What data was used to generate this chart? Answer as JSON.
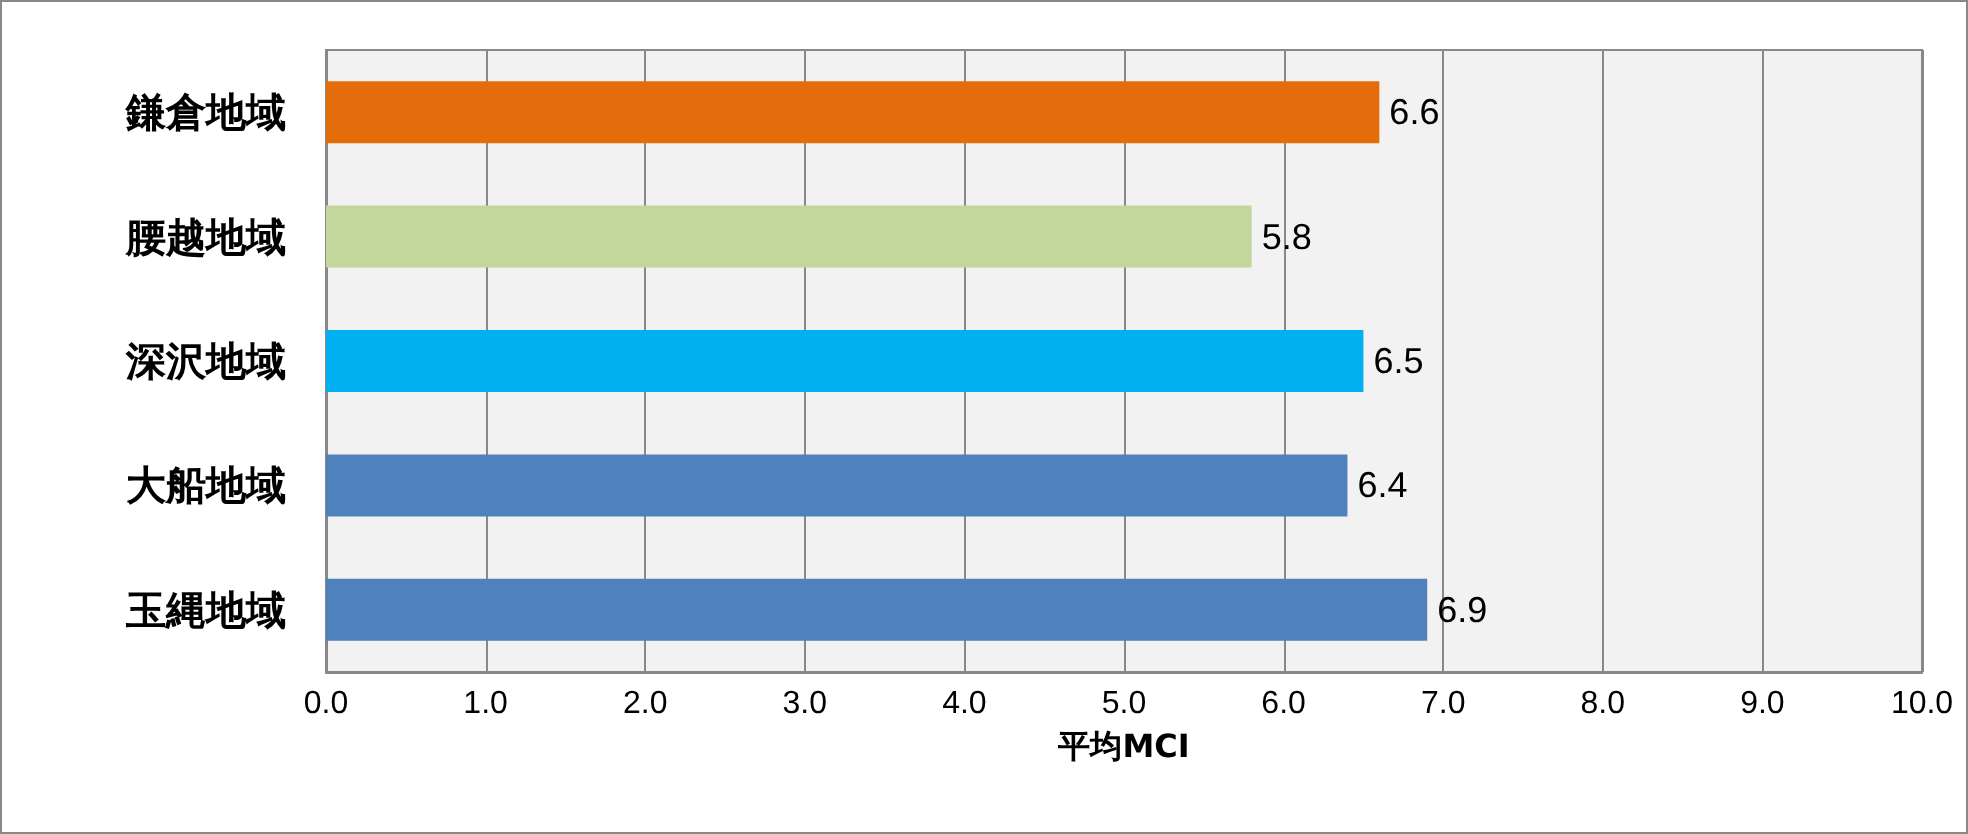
{
  "chart_data": {
    "type": "bar",
    "orientation": "horizontal",
    "xlabel": "平均MCI",
    "categories": [
      "鎌倉地域",
      "腰越地域",
      "深沢地域",
      "大船地域",
      "玉縄地域"
    ],
    "values": [
      6.6,
      5.8,
      6.5,
      6.4,
      6.9
    ],
    "colors": [
      "#e46c0a",
      "#c3d69b",
      "#00b0f0",
      "#4f81bd",
      "#4f81bd"
    ],
    "xlim": [
      0,
      10
    ],
    "xticks": [
      {
        "value": 0,
        "label": "0.0"
      },
      {
        "value": 1,
        "label": "1.0"
      },
      {
        "value": 2,
        "label": "2.0"
      },
      {
        "value": 3,
        "label": "3.0"
      },
      {
        "value": 4,
        "label": "4.0"
      },
      {
        "value": 5,
        "label": "5.0"
      },
      {
        "value": 6,
        "label": "6.0"
      },
      {
        "value": 7,
        "label": "7.0"
      },
      {
        "value": 8,
        "label": "8.0"
      },
      {
        "value": 9,
        "label": "9.0"
      },
      {
        "value": 10,
        "label": "10.0"
      }
    ],
    "grid": "x",
    "data_labels": true
  }
}
